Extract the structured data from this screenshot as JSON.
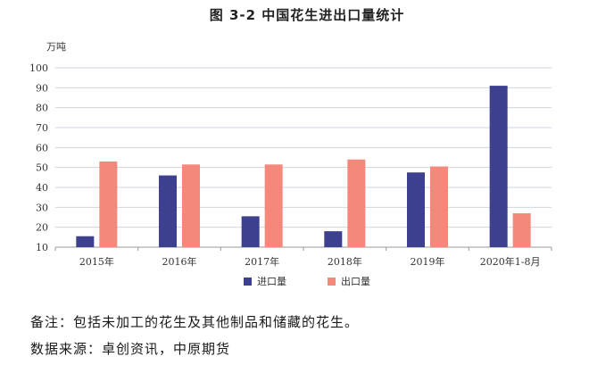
{
  "chart_data": {
    "type": "bar",
    "title": "图 3-2   中国花生进出口量统计",
    "ylabel": "万吨",
    "xlabel": "",
    "ylim": [
      10,
      100
    ],
    "yticks": [
      10,
      20,
      30,
      40,
      50,
      60,
      70,
      80,
      90,
      100
    ],
    "grid": true,
    "legend_position": "bottom",
    "categories": [
      "2015年",
      "2016年",
      "2017年",
      "2018年",
      "2019年",
      "2020年1-8月"
    ],
    "series": [
      {
        "name": "进口量",
        "color": "#3d3f8f",
        "values": [
          15.5,
          46,
          25.5,
          18,
          47.5,
          91
        ]
      },
      {
        "name": "出口量",
        "color": "#f4887a",
        "values": [
          53,
          51.5,
          51.5,
          54,
          50.5,
          27
        ]
      }
    ]
  },
  "notes": {
    "remark": "备注：包括未加工的花生及其他制品和储藏的花生。",
    "source": "数据来源：卓创资讯，中原期货"
  }
}
